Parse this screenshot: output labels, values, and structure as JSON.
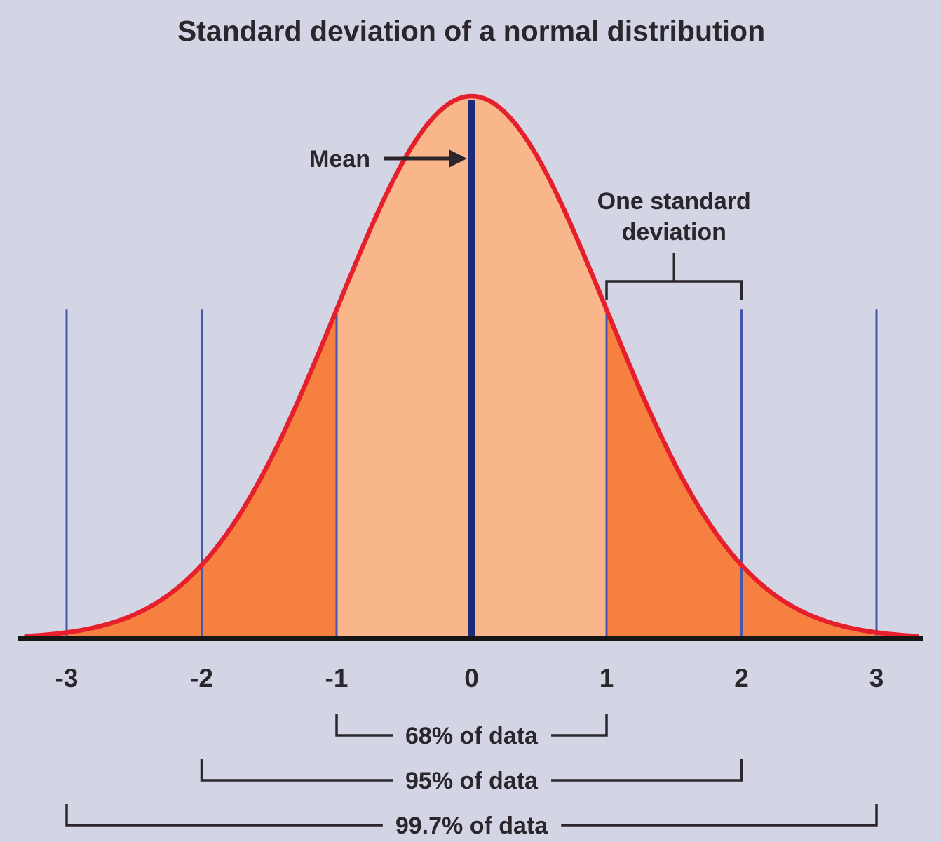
{
  "chart_data": {
    "type": "area",
    "title": "Standard deviation of a normal distribution",
    "distribution": {
      "name": "normal",
      "mean": 0,
      "sd": 1
    },
    "x_ticks": [
      -3,
      -2,
      -1,
      0,
      1,
      2,
      3
    ],
    "x_tick_labels": [
      "-3",
      "-2",
      "-1",
      "0",
      "1",
      "2",
      "3"
    ],
    "sigma_lines": [
      -3,
      -2,
      -1,
      1,
      2,
      3
    ],
    "curve_range": [
      -3.3,
      3.3
    ],
    "xlim": [
      -3.5,
      3.5
    ],
    "grid": false,
    "annotations": {
      "mean": {
        "label": "Mean"
      },
      "one_sd": {
        "line1": "One standard",
        "line2": "deviation",
        "from": 1,
        "to": 2
      }
    },
    "spans": [
      {
        "label": "68% of data",
        "percent": 68,
        "from": -1,
        "to": 1
      },
      {
        "label": "95% of data",
        "percent": 95,
        "from": -2,
        "to": 2
      },
      {
        "label": "99.7% of data",
        "percent": 99.7,
        "from": -3,
        "to": 3
      }
    ],
    "colors": {
      "background": "#d3d5e5",
      "curve": "#e61f2d",
      "fill_inner": "#f9b68b",
      "fill_outer": "#f5803f",
      "sigma_line": "#4557a9",
      "mean_line": "#1e2b7a",
      "axis": "#161616",
      "text": "#2a262b"
    }
  }
}
